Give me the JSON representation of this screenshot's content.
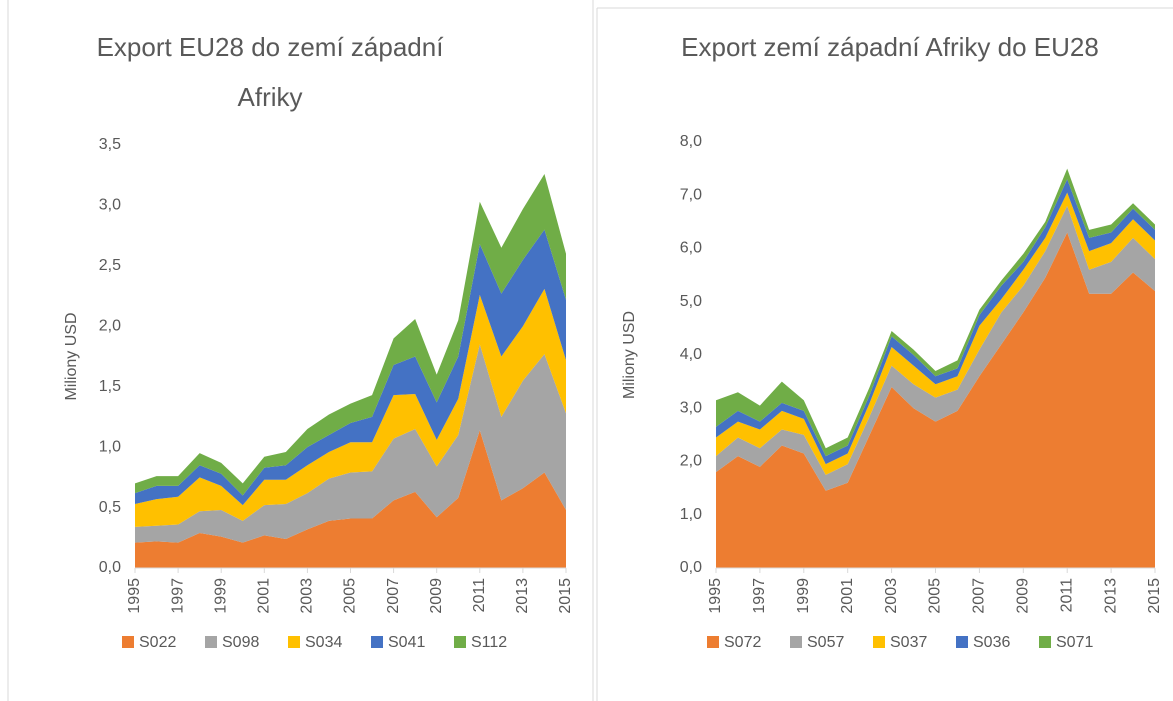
{
  "chart_data": [
    {
      "type": "area",
      "title": "Export EU28 do zemí západní Afriky",
      "ylabel": "Miliony USD",
      "x": [
        1995,
        1996,
        1997,
        1998,
        1999,
        2000,
        2001,
        2002,
        2003,
        2004,
        2005,
        2006,
        2007,
        2008,
        2009,
        2010,
        2011,
        2012,
        2013,
        2014,
        2015
      ],
      "xlim": [
        1995,
        2015
      ],
      "xticks": [
        1995,
        1997,
        1999,
        2001,
        2003,
        2005,
        2007,
        2009,
        2011,
        2013,
        2015
      ],
      "ylim": [
        0,
        3.5
      ],
      "yticks": [
        {
          "value": 0,
          "label": "0,0"
        },
        {
          "value": 0.5,
          "label": "0,5"
        },
        {
          "value": 1,
          "label": "1,0"
        },
        {
          "value": 1.5,
          "label": "1,5"
        },
        {
          "value": 2,
          "label": "2,0"
        },
        {
          "value": 2.5,
          "label": "2,5"
        },
        {
          "value": 3,
          "label": "3,0"
        },
        {
          "value": 3.5,
          "label": "3,5"
        }
      ],
      "grid": false,
      "stacked": true,
      "legend": "bottom",
      "series": [
        {
          "name": "S022",
          "color": "#ED7D31",
          "values": [
            0.21,
            0.22,
            0.21,
            0.29,
            0.26,
            0.21,
            0.27,
            0.24,
            0.32,
            0.39,
            0.41,
            0.41,
            0.56,
            0.63,
            0.42,
            0.58,
            1.14,
            0.56,
            0.66,
            0.79,
            0.48
          ]
        },
        {
          "name": "S098",
          "color": "#A5A5A5",
          "values": [
            0.13,
            0.13,
            0.15,
            0.18,
            0.22,
            0.18,
            0.25,
            0.29,
            0.3,
            0.35,
            0.38,
            0.39,
            0.51,
            0.52,
            0.42,
            0.52,
            0.71,
            0.69,
            0.89,
            0.98,
            0.8
          ]
        },
        {
          "name": "S034",
          "color": "#FFC000",
          "values": [
            0.19,
            0.22,
            0.23,
            0.28,
            0.2,
            0.13,
            0.21,
            0.2,
            0.23,
            0.22,
            0.25,
            0.24,
            0.36,
            0.29,
            0.22,
            0.3,
            0.41,
            0.5,
            0.45,
            0.54,
            0.44
          ]
        },
        {
          "name": "S041",
          "color": "#4472C4",
          "values": [
            0.09,
            0.11,
            0.09,
            0.1,
            0.1,
            0.08,
            0.1,
            0.12,
            0.15,
            0.14,
            0.16,
            0.21,
            0.25,
            0.31,
            0.31,
            0.35,
            0.42,
            0.52,
            0.55,
            0.49,
            0.5
          ]
        },
        {
          "name": "S112",
          "color": "#70AD47",
          "values": [
            0.08,
            0.08,
            0.08,
            0.1,
            0.09,
            0.1,
            0.09,
            0.11,
            0.15,
            0.17,
            0.16,
            0.18,
            0.22,
            0.31,
            0.23,
            0.3,
            0.35,
            0.38,
            0.42,
            0.46,
            0.38
          ]
        }
      ]
    },
    {
      "type": "area",
      "title": "Export zemí západní Afriky do EU28",
      "ylabel": "Miliony USD",
      "x": [
        1995,
        1996,
        1997,
        1998,
        1999,
        2000,
        2001,
        2002,
        2003,
        2004,
        2005,
        2006,
        2007,
        2008,
        2009,
        2010,
        2011,
        2012,
        2013,
        2014,
        2015
      ],
      "xlim": [
        1995,
        2015
      ],
      "xticks": [
        1995,
        1997,
        1999,
        2001,
        2003,
        2005,
        2007,
        2009,
        2011,
        2013,
        2015
      ],
      "ylim": [
        0,
        8
      ],
      "yticks": [
        {
          "value": 0,
          "label": "0,0"
        },
        {
          "value": 1,
          "label": "1,0"
        },
        {
          "value": 2,
          "label": "2,0"
        },
        {
          "value": 3,
          "label": "3,0"
        },
        {
          "value": 4,
          "label": "4,0"
        },
        {
          "value": 5,
          "label": "5,0"
        },
        {
          "value": 6,
          "label": "6,0"
        },
        {
          "value": 7,
          "label": "7,0"
        },
        {
          "value": 8,
          "label": "8,0"
        }
      ],
      "grid": false,
      "stacked": true,
      "legend": "bottom",
      "series": [
        {
          "name": "S072",
          "color": "#ED7D31",
          "values": [
            1.8,
            2.1,
            1.9,
            2.3,
            2.15,
            1.45,
            1.6,
            2.5,
            3.4,
            3.0,
            2.75,
            2.95,
            3.6,
            4.2,
            4.8,
            5.45,
            6.3,
            5.15,
            5.15,
            5.55,
            5.2
          ]
        },
        {
          "name": "S057",
          "color": "#A5A5A5",
          "values": [
            0.3,
            0.35,
            0.35,
            0.3,
            0.35,
            0.3,
            0.35,
            0.35,
            0.4,
            0.45,
            0.45,
            0.4,
            0.5,
            0.6,
            0.5,
            0.5,
            0.5,
            0.45,
            0.6,
            0.65,
            0.6
          ]
        },
        {
          "name": "S037",
          "color": "#FFC000",
          "values": [
            0.35,
            0.3,
            0.35,
            0.35,
            0.3,
            0.2,
            0.2,
            0.25,
            0.35,
            0.35,
            0.25,
            0.25,
            0.45,
            0.25,
            0.3,
            0.25,
            0.25,
            0.35,
            0.35,
            0.35,
            0.35
          ]
        },
        {
          "name": "S036",
          "color": "#4472C4",
          "values": [
            0.2,
            0.2,
            0.15,
            0.15,
            0.15,
            0.15,
            0.15,
            0.15,
            0.2,
            0.2,
            0.15,
            0.15,
            0.2,
            0.25,
            0.15,
            0.2,
            0.25,
            0.25,
            0.2,
            0.2,
            0.2
          ]
        },
        {
          "name": "S071",
          "color": "#70AD47",
          "values": [
            0.5,
            0.35,
            0.3,
            0.4,
            0.2,
            0.15,
            0.15,
            0.15,
            0.1,
            0.1,
            0.1,
            0.15,
            0.1,
            0.1,
            0.15,
            0.1,
            0.2,
            0.15,
            0.15,
            0.1,
            0.1
          ]
        }
      ]
    }
  ]
}
